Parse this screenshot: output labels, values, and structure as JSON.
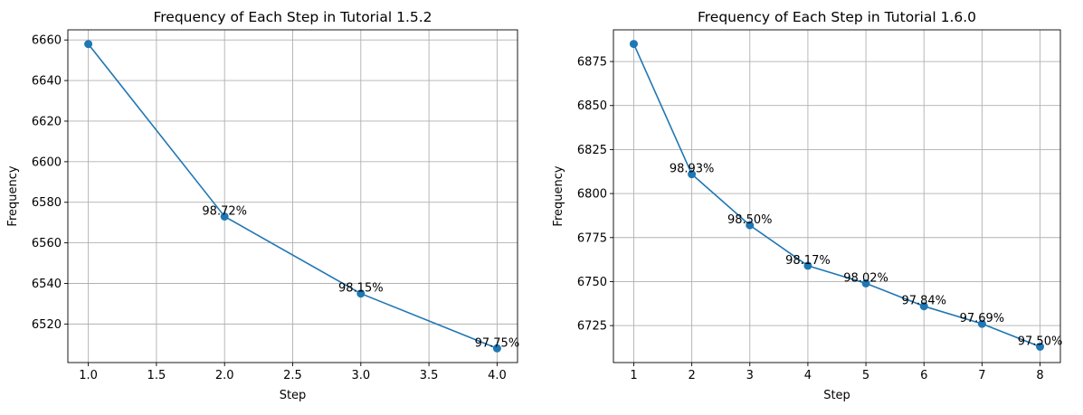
{
  "chart_data": [
    {
      "type": "line",
      "title": "Frequency of Each Step in Tutorial 1.5.2",
      "xlabel": "Step",
      "ylabel": "Frequency",
      "xlim": [
        0.85,
        4.15
      ],
      "ylim": [
        6501,
        6665
      ],
      "grid": true,
      "x_ticks": [
        1.0,
        1.5,
        2.0,
        2.5,
        3.0,
        3.5,
        4.0
      ],
      "x_tick_labels": [
        "1.0",
        "1.5",
        "2.0",
        "2.5",
        "3.0",
        "3.5",
        "4.0"
      ],
      "y_ticks": [
        6520,
        6540,
        6560,
        6580,
        6600,
        6620,
        6640,
        6660
      ],
      "y_tick_labels": [
        "6520",
        "6540",
        "6560",
        "6580",
        "6600",
        "6620",
        "6640",
        "6660"
      ],
      "series": [
        {
          "color": "#1f77b4",
          "x": [
            1,
            2,
            3,
            4
          ],
          "y": [
            6658,
            6573,
            6535,
            6508
          ]
        }
      ],
      "annotations": [
        {
          "x": 2,
          "y": 6573,
          "text": "98.72%"
        },
        {
          "x": 3,
          "y": 6535,
          "text": "98.15%"
        },
        {
          "x": 4,
          "y": 6508,
          "text": "97.75%"
        }
      ]
    },
    {
      "type": "line",
      "title": "Frequency of Each Step in Tutorial 1.6.0",
      "xlabel": "Step",
      "ylabel": "Frequency",
      "xlim": [
        0.65,
        8.35
      ],
      "ylim": [
        6704,
        6893
      ],
      "grid": true,
      "x_ticks": [
        1,
        2,
        3,
        4,
        5,
        6,
        7,
        8
      ],
      "x_tick_labels": [
        "1",
        "2",
        "3",
        "4",
        "5",
        "6",
        "7",
        "8"
      ],
      "y_ticks": [
        6725,
        6750,
        6775,
        6800,
        6825,
        6850,
        6875
      ],
      "y_tick_labels": [
        "6725",
        "6750",
        "6775",
        "6800",
        "6825",
        "6850",
        "6875"
      ],
      "series": [
        {
          "color": "#1f77b4",
          "x": [
            1,
            2,
            3,
            4,
            5,
            6,
            7,
            8
          ],
          "y": [
            6885,
            6811,
            6782,
            6759,
            6749,
            6736,
            6726,
            6713
          ]
        }
      ],
      "annotations": [
        {
          "x": 2,
          "y": 6811,
          "text": "98.93%"
        },
        {
          "x": 3,
          "y": 6782,
          "text": "98.50%"
        },
        {
          "x": 4,
          "y": 6759,
          "text": "98.17%"
        },
        {
          "x": 5,
          "y": 6749,
          "text": "98.02%"
        },
        {
          "x": 6,
          "y": 6736,
          "text": "97.84%"
        },
        {
          "x": 7,
          "y": 6726,
          "text": "97.69%"
        },
        {
          "x": 8,
          "y": 6713,
          "text": "97.50%"
        }
      ]
    }
  ]
}
